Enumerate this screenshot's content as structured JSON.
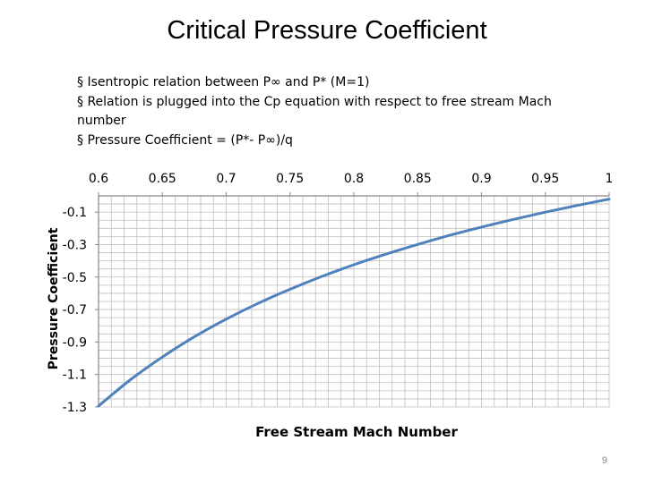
{
  "slide": {
    "title": "Critical Pressure Coefficient",
    "bullets": [
      "§ Isentropic relation between P∞ and P* (M=1)",
      "§ Relation is plugged into the Cp equation with respect to free stream Mach number",
      "§ Pressure Coefficient = (P*- P∞)/q"
    ],
    "page_number": "9"
  },
  "colors": {
    "line": "#4f81bd",
    "grid": "#bfbfbf",
    "axis": "#868686"
  },
  "chart_data": {
    "type": "line",
    "title": "",
    "xlabel": "Free Stream Mach Number",
    "ylabel": "Pressure Coefficient",
    "xlim": [
      0.6,
      1.0
    ],
    "ylim": [
      -1.3,
      0.0
    ],
    "x_tick_labels": [
      "0.6",
      "0.65",
      "0.7",
      "0.75",
      "0.8",
      "0.85",
      "0.9",
      "0.95",
      "1"
    ],
    "y_tick_labels": [
      "-0.1",
      "-0.3",
      "-0.5",
      "-0.7",
      "-0.9",
      "-1.1",
      "-1.3"
    ],
    "x_axis_position": "top",
    "grid": true,
    "legend": "none",
    "series": [
      {
        "x": [
          0.6,
          0.625,
          0.65,
          0.675,
          0.7,
          0.725,
          0.75,
          0.775,
          0.8,
          0.825,
          0.85,
          0.875,
          0.9,
          0.925,
          0.95,
          0.975,
          1.0
        ],
        "y": [
          -1.294,
          -1.132,
          -0.992,
          -0.868,
          -0.759,
          -0.662,
          -0.575,
          -0.496,
          -0.424,
          -0.359,
          -0.299,
          -0.243,
          -0.192,
          -0.145,
          -0.1,
          -0.059,
          -0.02
        ]
      }
    ]
  }
}
